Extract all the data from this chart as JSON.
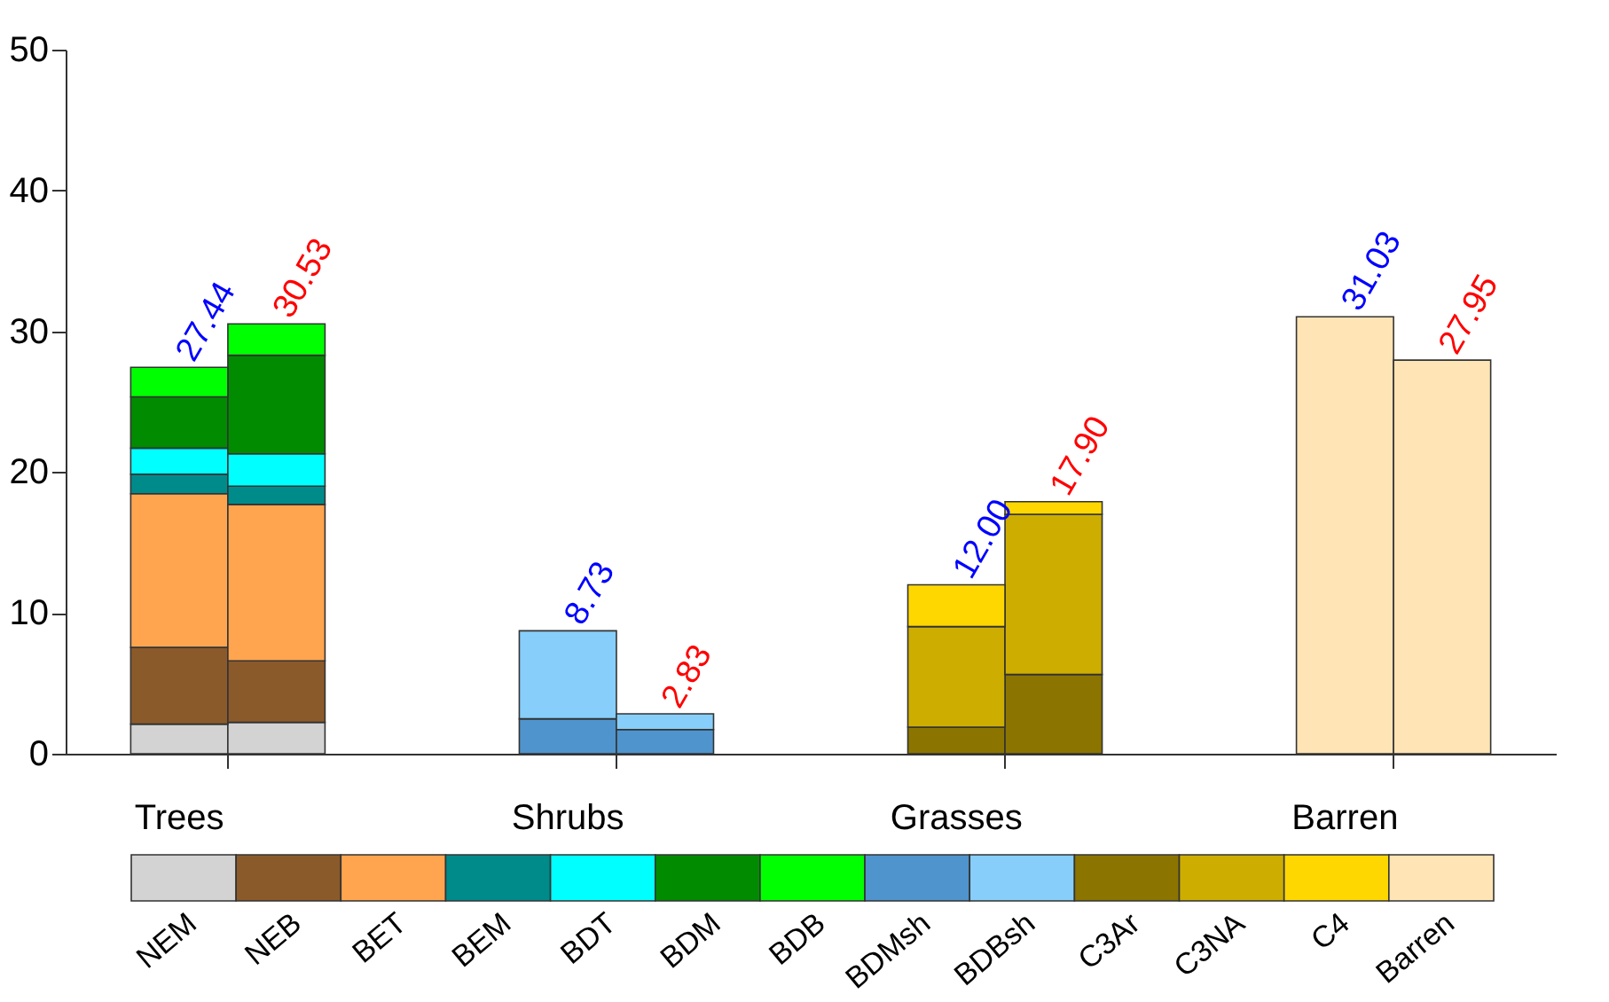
{
  "chart_data": {
    "type": "bar",
    "stacked": true,
    "categories": [
      "Trees",
      null,
      null,
      null,
      "Shrubs",
      null,
      null,
      null,
      "Grasses",
      null,
      null,
      null,
      "Barren",
      null
    ],
    "ylim": [
      0,
      50
    ],
    "yticks": [
      0,
      10,
      20,
      30,
      40,
      50
    ],
    "legend": "bottom",
    "series": [
      {
        "name": "NEM",
        "color": "#d3d3d3",
        "values": [
          2.1,
          2.23,
          null,
          null,
          null,
          null,
          null,
          null,
          null,
          null,
          null,
          null,
          null,
          null
        ]
      },
      {
        "name": "NEB",
        "color": "#8b5a2b",
        "values": [
          5.45,
          4.37,
          null,
          null,
          null,
          null,
          null,
          null,
          null,
          null,
          null,
          null,
          null,
          null
        ]
      },
      {
        "name": "BET",
        "color": "#ffa54f",
        "values": [
          10.92,
          11.1,
          null,
          null,
          null,
          null,
          null,
          null,
          null,
          null,
          null,
          null,
          null,
          null
        ]
      },
      {
        "name": "BEM",
        "color": "#008b8b",
        "values": [
          1.38,
          1.3,
          null,
          null,
          null,
          null,
          null,
          null,
          null,
          null,
          null,
          null,
          null,
          null
        ]
      },
      {
        "name": "BDT",
        "color": "#00ffff",
        "values": [
          1.85,
          2.3,
          null,
          null,
          null,
          null,
          null,
          null,
          null,
          null,
          null,
          null,
          null,
          null
        ]
      },
      {
        "name": "BDM",
        "color": "#008b00",
        "values": [
          3.65,
          7.0,
          null,
          null,
          null,
          null,
          null,
          null,
          null,
          null,
          null,
          null,
          null,
          null
        ]
      },
      {
        "name": "BDB",
        "color": "#00ff00",
        "values": [
          2.09,
          2.23,
          null,
          null,
          null,
          null,
          null,
          null,
          null,
          null,
          null,
          null,
          null,
          null
        ]
      },
      {
        "name": "BDMsh",
        "color": "#4f94cd",
        "values": [
          null,
          null,
          null,
          null,
          2.48,
          1.72,
          null,
          null,
          null,
          null,
          null,
          null,
          null,
          null
        ]
      },
      {
        "name": "BDBsh",
        "color": "#87cefa",
        "values": [
          null,
          null,
          null,
          null,
          6.25,
          1.11,
          null,
          null,
          null,
          null,
          null,
          null,
          null,
          null
        ]
      },
      {
        "name": "C3Ar",
        "color": "#8b7500",
        "values": [
          null,
          null,
          null,
          null,
          null,
          null,
          null,
          null,
          1.89,
          5.63,
          null,
          null,
          null,
          null
        ]
      },
      {
        "name": "C3NA",
        "color": "#cdad00",
        "values": [
          null,
          null,
          null,
          null,
          null,
          null,
          null,
          null,
          7.14,
          11.37,
          null,
          null,
          null,
          null
        ]
      },
      {
        "name": "C4",
        "color": "#ffd700",
        "values": [
          null,
          null,
          null,
          null,
          null,
          null,
          null,
          null,
          2.97,
          0.9,
          null,
          null,
          null,
          null
        ]
      },
      {
        "name": "Barren",
        "color": "#ffe4b5",
        "values": [
          null,
          null,
          null,
          null,
          null,
          null,
          null,
          null,
          null,
          null,
          null,
          null,
          31.03,
          27.95
        ]
      }
    ],
    "totals": [
      "27.44",
      "30.53",
      null,
      null,
      "8.73",
      "2.83",
      null,
      null,
      "12.00",
      "17.90",
      null,
      null,
      "31.03",
      "27.95"
    ]
  }
}
